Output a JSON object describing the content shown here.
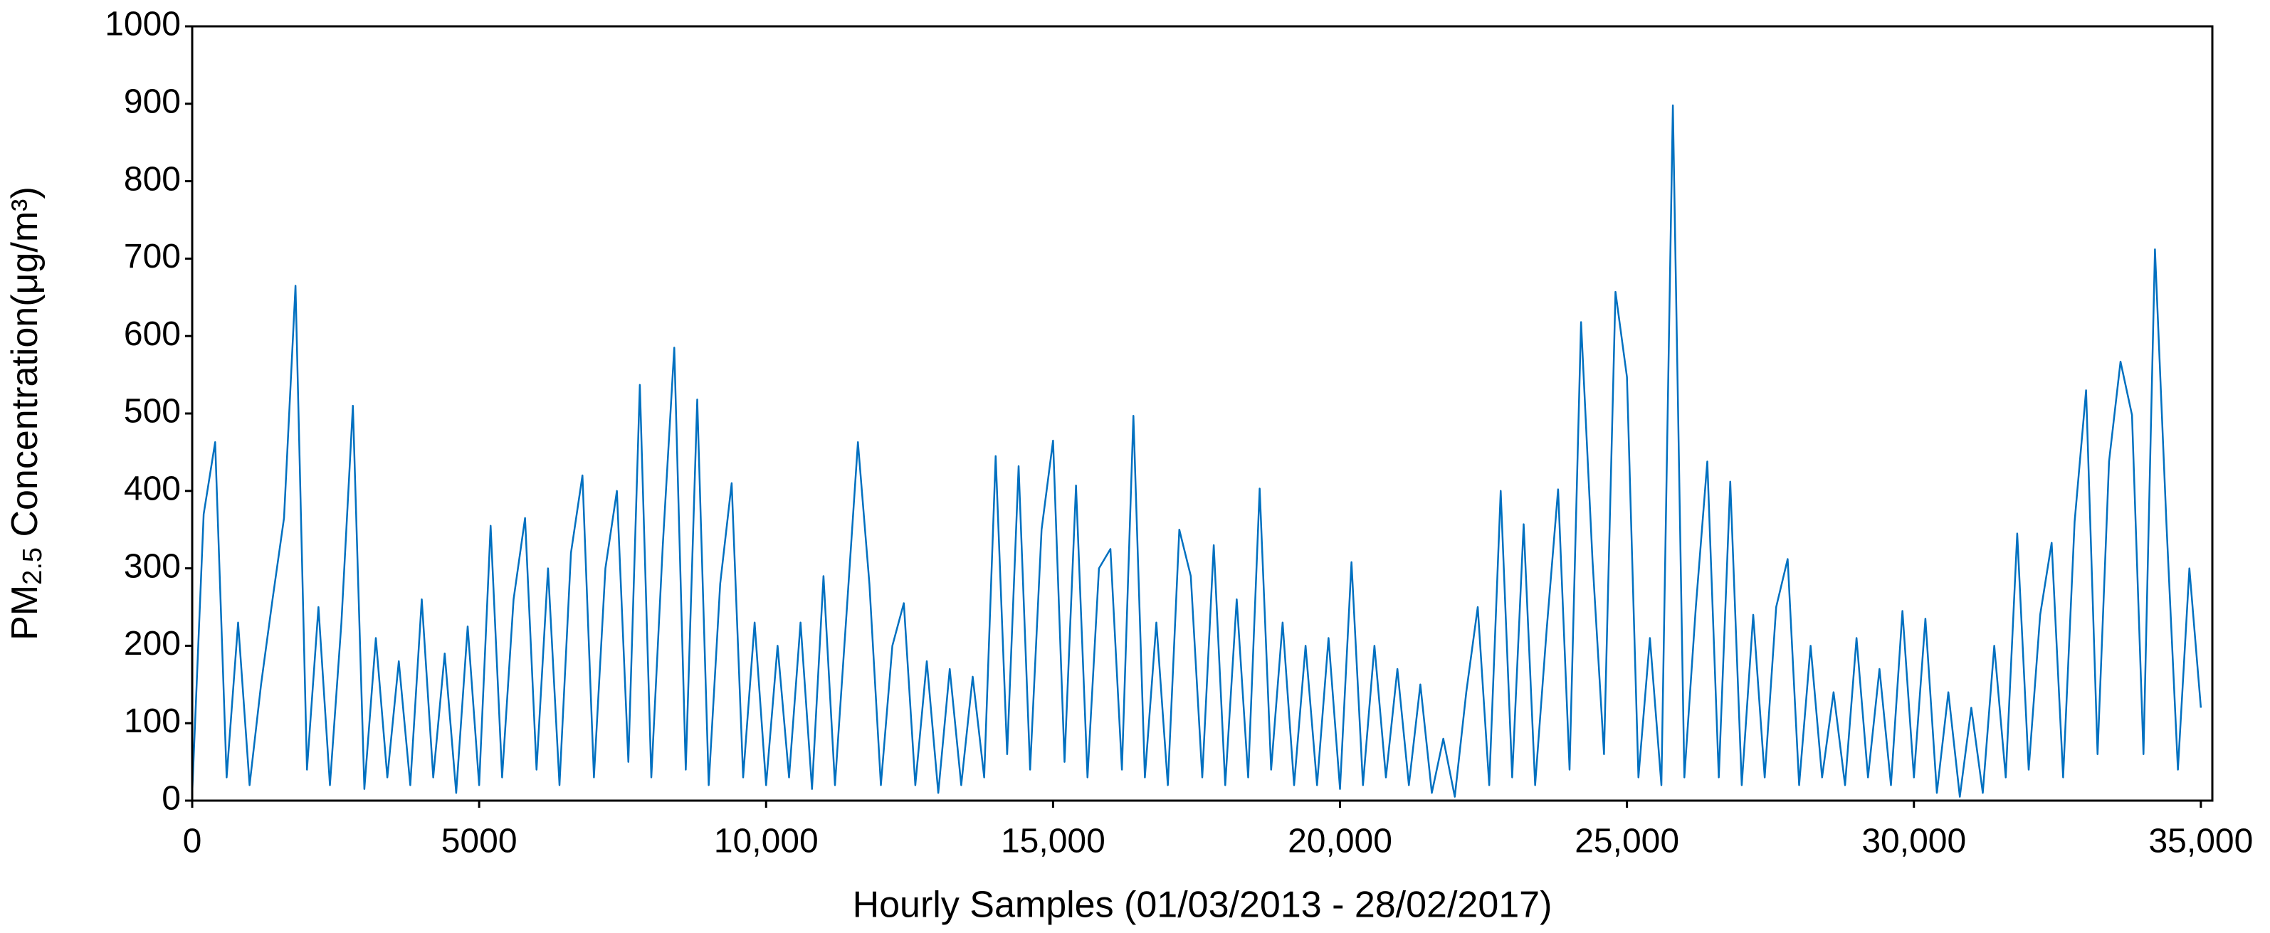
{
  "chart_data": {
    "type": "line",
    "x_label": "Hourly Samples (01/03/2013 - 28/02/2017)",
    "y_label": {
      "main": "PM",
      "sub": "2.5",
      "rest": " Concentration(μg/m³)"
    },
    "xlim": [
      0,
      35200
    ],
    "ylim": [
      0,
      1000
    ],
    "xticks": [
      0,
      5000,
      {
        "value": 10000,
        "label": "10,000"
      },
      {
        "value": 15000,
        "label": "15,000"
      },
      {
        "value": 20000,
        "label": "20,000"
      },
      {
        "value": 25000,
        "label": "25,000"
      },
      {
        "value": 30000,
        "label": "30,000"
      },
      {
        "value": 35000,
        "label": "35,000"
      }
    ],
    "yticks": [
      0,
      100,
      200,
      300,
      400,
      500,
      600,
      700,
      800,
      900,
      1000
    ],
    "grid": false,
    "x": [
      0,
      200,
      400,
      600,
      800,
      1000,
      1200,
      1400,
      1600,
      1800,
      2000,
      2200,
      2400,
      2600,
      2800,
      3000,
      3200,
      3400,
      3600,
      3800,
      4000,
      4200,
      4400,
      4600,
      4800,
      5000,
      5200,
      5400,
      5600,
      5800,
      6000,
      6200,
      6400,
      6600,
      6800,
      7000,
      7200,
      7400,
      7600,
      7800,
      8000,
      8200,
      8400,
      8600,
      8800,
      9000,
      9200,
      9400,
      9600,
      9800,
      10000,
      10200,
      10400,
      10600,
      10800,
      11000,
      11200,
      11400,
      11600,
      11800,
      12000,
      12200,
      12400,
      12600,
      12800,
      13000,
      13200,
      13400,
      13600,
      13800,
      14000,
      14200,
      14400,
      14600,
      14800,
      15000,
      15200,
      15400,
      15600,
      15800,
      16000,
      16200,
      16400,
      16600,
      16800,
      17000,
      17200,
      17400,
      17600,
      17800,
      18000,
      18200,
      18400,
      18600,
      18800,
      19000,
      19200,
      19400,
      19600,
      19800,
      20000,
      20200,
      20400,
      20600,
      20800,
      21000,
      21200,
      21400,
      21600,
      21800,
      22000,
      22200,
      22400,
      22600,
      22800,
      23000,
      23200,
      23400,
      23600,
      23800,
      24000,
      24200,
      24400,
      24600,
      24800,
      25000,
      25200,
      25400,
      25600,
      25800,
      26000,
      26200,
      26400,
      26600,
      26800,
      27000,
      27200,
      27400,
      27600,
      27800,
      28000,
      28200,
      28400,
      28600,
      28800,
      29000,
      29200,
      29400,
      29600,
      29800,
      30000,
      30200,
      30400,
      30600,
      30800,
      31000,
      31200,
      31400,
      31600,
      31800,
      32000,
      32200,
      32400,
      32600,
      32800,
      33000,
      33200,
      33400,
      33600,
      33800,
      34000,
      34200,
      34400,
      34600,
      34800,
      35000
    ],
    "series": [
      {
        "color": "#0070c0",
        "values": [
          10,
          370,
          463,
          30,
          230,
          20,
          150,
          260,
          365,
          665,
          40,
          250,
          20,
          230,
          510,
          15,
          210,
          30,
          180,
          20,
          260,
          30,
          190,
          10,
          225,
          20,
          355,
          30,
          260,
          365,
          40,
          300,
          20,
          320,
          420,
          30,
          300,
          400,
          50,
          537,
          30,
          330,
          585,
          40,
          518,
          20,
          280,
          410,
          30,
          230,
          20,
          200,
          30,
          230,
          15,
          290,
          20,
          240,
          463,
          280,
          20,
          200,
          255,
          20,
          180,
          10,
          170,
          20,
          160,
          30,
          445,
          60,
          432,
          40,
          350,
          465,
          50,
          407,
          30,
          300,
          325,
          40,
          497,
          30,
          230,
          20,
          350,
          290,
          30,
          330,
          20,
          260,
          30,
          403,
          40,
          230,
          20,
          200,
          20,
          210,
          15,
          308,
          20,
          200,
          30,
          170,
          20,
          150,
          10,
          80,
          5,
          140,
          250,
          20,
          400,
          30,
          357,
          20,
          220,
          402,
          40,
          618,
          310,
          60,
          657,
          547,
          30,
          210,
          20,
          898,
          30,
          250,
          438,
          30,
          412,
          20,
          240,
          30,
          250,
          312,
          20,
          200,
          30,
          140,
          20,
          210,
          30,
          170,
          20,
          245,
          30,
          235,
          10,
          140,
          5,
          120,
          10,
          200,
          30,
          345,
          40,
          240,
          333,
          30,
          360,
          530,
          60,
          438,
          567,
          498,
          60,
          712,
          358,
          40,
          300,
          120
        ]
      }
    ]
  }
}
